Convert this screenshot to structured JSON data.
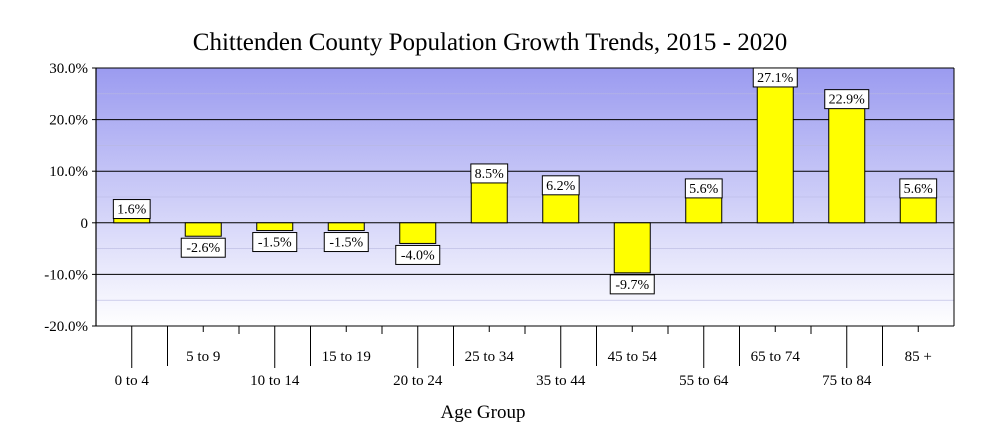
{
  "chart_data": {
    "type": "bar",
    "title": "Chittenden County Population Growth Trends, 2015 - 2020",
    "xlabel": "Age Group",
    "ylabel": "",
    "categories": [
      "0 to 4",
      "5 to 9",
      "10 to 14",
      "15 to 19",
      "20 to 24",
      "25 to 34",
      "35 to 44",
      "45 to 54",
      "55 to 64",
      "65 to 74",
      "75 to 84",
      "85 +"
    ],
    "values": [
      1.6,
      -2.6,
      -1.5,
      -1.5,
      -4.0,
      8.5,
      6.2,
      -9.7,
      5.6,
      27.1,
      22.9,
      5.6
    ],
    "data_labels": [
      "1.6%",
      "-2.6%",
      "-1.5%",
      "-1.5%",
      "-4.0%",
      "8.5%",
      "6.2%",
      "-9.7%",
      "5.6%",
      "27.1%",
      "22.9%",
      "5.6%"
    ],
    "y_ticks": [
      30,
      20,
      10,
      0,
      -10,
      -20
    ],
    "y_tick_labels": [
      "30.0%",
      "20.0%",
      "10.0%",
      "0",
      "-10.0%",
      "-20.0%"
    ],
    "ylim": [
      -20,
      30
    ],
    "bar_color": "#ffff00",
    "plot_background": "gradient #9999ee to #ffffff",
    "legend": "none"
  }
}
